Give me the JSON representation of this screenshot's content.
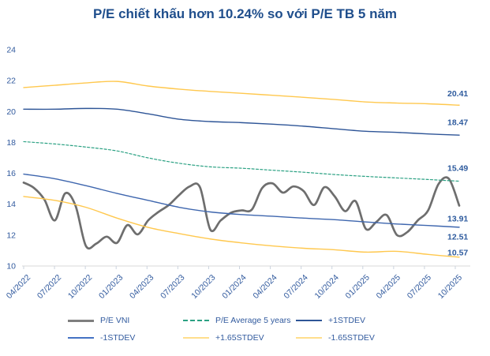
{
  "chart_data": {
    "type": "line",
    "title": "P/E chiết khấu hơn 10.24% so với P/E TB 5 năm",
    "xlabel": "",
    "ylabel": "",
    "grid": false,
    "legend_position": "bottom",
    "y_axis": {
      "min": 10,
      "max": 24,
      "ticks": [
        10,
        12,
        14,
        16,
        18,
        20,
        22,
        24
      ]
    },
    "x_axis": {
      "tick_labels": [
        "04/2022",
        "07/2022",
        "10/2022",
        "01/2023",
        "04/2023",
        "07/2023",
        "10/2023",
        "01/2024",
        "04/2024",
        "07/2024",
        "10/2024",
        "01/2025",
        "04/2025",
        "07/2025",
        "10/2025"
      ],
      "months_per_tick": 3,
      "total_months": 43
    },
    "series": [
      {
        "id": "vni",
        "name": "P/E VNI",
        "color": "#6E6E6E",
        "legend_color": "#7F7F7F",
        "width": 2.7,
        "dash": null,
        "x_step": 1,
        "end_label": "13.91",
        "end_label_dy": 16.5,
        "values": [
          15.4,
          15.05,
          14.3,
          12.95,
          14.7,
          13.9,
          11.3,
          11.45,
          11.9,
          11.5,
          12.65,
          12.05,
          12.95,
          13.5,
          13.95,
          14.6,
          15.15,
          15.1,
          12.35,
          12.95,
          13.45,
          13.6,
          13.65,
          15.05,
          15.35,
          14.75,
          15.15,
          14.85,
          13.95,
          15.1,
          14.5,
          13.55,
          14.2,
          12.4,
          12.85,
          13.3,
          12.0,
          12.2,
          12.95,
          13.6,
          15.3,
          15.65,
          13.91
        ]
      },
      {
        "id": "avg5",
        "name": "P/E Average 5 years",
        "color": "#2BA183",
        "legend_color": "#2BA183",
        "width": 1.2,
        "dash": "3 2.4",
        "x_step": 3,
        "end_label": "15.49",
        "end_label_dy": -16.5,
        "values": [
          18.05,
          17.9,
          17.7,
          17.45,
          17.0,
          16.65,
          16.42,
          16.33,
          16.2,
          16.07,
          15.92,
          15.8,
          15.7,
          15.6,
          15.49
        ]
      },
      {
        "id": "plus1",
        "name": "+1STDEV",
        "color": "#2E5597",
        "legend_color": "#2E5597",
        "width": 1.4,
        "dash": null,
        "x_step": 3,
        "end_label": "18.47",
        "end_label_dy": -16,
        "values": [
          20.15,
          20.15,
          20.2,
          20.15,
          19.85,
          19.5,
          19.35,
          19.28,
          19.18,
          19.05,
          18.88,
          18.72,
          18.65,
          18.55,
          18.47
        ]
      },
      {
        "id": "minus1",
        "name": "-1STDEV",
        "color": "#3E66AE",
        "legend_color": "#4472C4",
        "width": 1.4,
        "dash": null,
        "x_step": 3,
        "end_label": "12.51",
        "end_label_dy": 12,
        "values": [
          15.95,
          15.65,
          15.2,
          14.7,
          14.25,
          13.8,
          13.5,
          13.33,
          13.22,
          13.1,
          13.0,
          12.85,
          12.72,
          12.62,
          12.51
        ]
      },
      {
        "id": "plus165",
        "name": "+1.65STDEV",
        "color": "#FFC84E",
        "legend_color": "#FFDE8D",
        "width": 1.4,
        "dash": null,
        "x_step": 3,
        "end_label": "20.41",
        "end_label_dy": -15,
        "values": [
          21.55,
          21.7,
          21.85,
          21.95,
          21.65,
          21.45,
          21.3,
          21.18,
          21.05,
          20.92,
          20.78,
          20.62,
          20.55,
          20.5,
          20.41
        ]
      },
      {
        "id": "minus165",
        "name": "-1.65STDEV",
        "color": "#FFC84E",
        "legend_color": "#FFDE8D",
        "width": 1.4,
        "dash": null,
        "x_step": 3,
        "end_label": "10.57",
        "end_label_dy": -6,
        "values": [
          14.5,
          14.25,
          13.8,
          13.1,
          12.5,
          12.1,
          11.75,
          11.5,
          11.3,
          11.15,
          11.05,
          10.9,
          10.95,
          10.75,
          10.57
        ]
      }
    ],
    "legend_rows": [
      [
        "vni",
        "avg5",
        "plus1"
      ],
      [
        "minus1",
        "plus165",
        "minus165"
      ]
    ]
  },
  "colors": {
    "title": "#1F4E8C",
    "axis_label_text": "#315A9E",
    "end_label_text": "#2E5B9E",
    "axis_line": "#D9D9D9",
    "tick_mark": "#CBD3DE",
    "background": "#FFFFFF"
  }
}
